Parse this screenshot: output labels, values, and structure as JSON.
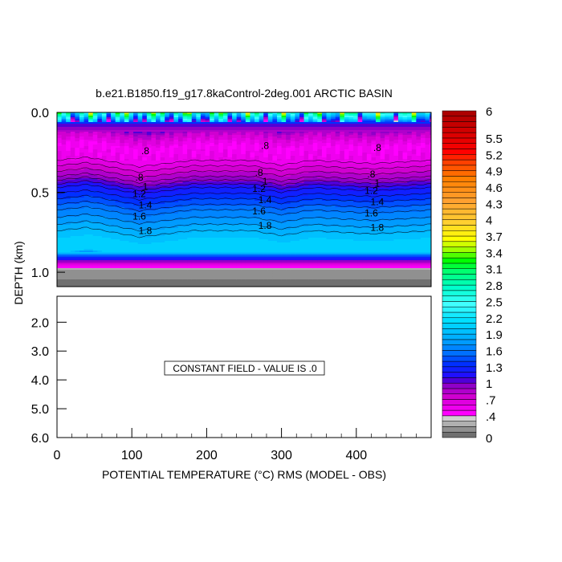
{
  "chart_data": {
    "type": "heatmap",
    "title": "b.e21.B1850.f19_g17.8kaControl-2deg.001 ARCTIC BASIN",
    "xlabel": "POTENTIAL TEMPERATURE (°C) RMS (MODEL - OBS)",
    "ylabel": "DEPTH (km)",
    "xlim": [
      0,
      500
    ],
    "x_ticks": [
      "0",
      "100",
      "200",
      "300",
      "400"
    ],
    "x_tick_values": [
      0,
      100,
      200,
      300,
      400
    ],
    "x_minor_step": 20,
    "upper_panel": {
      "ylim": [
        0,
        1.09
      ],
      "y_ticks": [
        "0.0",
        "0.5",
        "1.0"
      ],
      "y_tick_values": [
        0,
        0.5,
        1.0
      ],
      "contour_labels": [
        ".8",
        ".8",
        "1",
        "1.2",
        "1.4",
        "1.6",
        "1.8"
      ],
      "contour_label_values": [
        0.8,
        0.8,
        1.0,
        1.2,
        1.4,
        1.6,
        1.8
      ],
      "contour_label_x": [
        110,
        270,
        420
      ],
      "mean_profile": {
        "depth_km": [
          0.0,
          0.07,
          0.12,
          0.2,
          0.3,
          0.4,
          0.47,
          0.54,
          0.61,
          0.7,
          0.78,
          0.87,
          0.9,
          0.95,
          0.98,
          1.09
        ],
        "value": [
          2.6,
          1.1,
          0.8,
          0.5,
          0.6,
          0.9,
          1.2,
          1.4,
          1.6,
          1.8,
          2.0,
          2.0,
          1.3,
          0.6,
          0.2,
          0.0
        ]
      },
      "ridge_x": [
        0,
        40,
        110,
        180,
        260,
        300,
        340,
        420,
        500
      ],
      "ridge_shift_km": [
        0.0,
        -0.02,
        0.04,
        0.0,
        0.0,
        0.03,
        0.0,
        0.02,
        0.0
      ]
    },
    "lower_panel": {
      "ylim": [
        1.1,
        6.0
      ],
      "y_ticks": [
        "2.0",
        "3.0",
        "4.0",
        "5.0",
        "6.0"
      ],
      "y_tick_values": [
        2,
        3,
        4,
        5,
        6
      ],
      "annotation": "CONSTANT FIELD - VALUE IS .0"
    },
    "colorbar": {
      "min": 0,
      "max": 6,
      "step": 0.1,
      "labels": [
        "6",
        "5.5",
        "5.2",
        "4.9",
        "4.6",
        "4.3",
        "4",
        "3.7",
        "3.4",
        "3.1",
        "2.8",
        "2.5",
        "2.2",
        "1.9",
        "1.6",
        "1.3",
        "1",
        ".7",
        ".4",
        "0"
      ],
      "label_values": [
        6,
        5.5,
        5.2,
        4.9,
        4.6,
        4.3,
        4,
        3.7,
        3.4,
        3.1,
        2.8,
        2.5,
        2.2,
        1.9,
        1.6,
        1.3,
        1,
        0.7,
        0.4,
        0
      ],
      "color_stops": [
        [
          0.0,
          "#707070"
        ],
        [
          0.1,
          "#909090"
        ],
        [
          0.2,
          "#b0b0b0"
        ],
        [
          0.3,
          "#d0d0d0"
        ],
        [
          0.4,
          "#ff00ff"
        ],
        [
          0.7,
          "#d000d0"
        ],
        [
          0.9,
          "#9000c8"
        ],
        [
          1.0,
          "#5000d8"
        ],
        [
          1.1,
          "#2010ff"
        ],
        [
          1.3,
          "#0030ff"
        ],
        [
          1.5,
          "#0070ff"
        ],
        [
          1.8,
          "#00b0ff"
        ],
        [
          2.1,
          "#00e0ff"
        ],
        [
          2.4,
          "#40ffff"
        ],
        [
          2.7,
          "#00ffcc"
        ],
        [
          3.0,
          "#00ff70"
        ],
        [
          3.2,
          "#00ff00"
        ],
        [
          3.4,
          "#a0ff00"
        ],
        [
          3.6,
          "#ffff00"
        ],
        [
          3.9,
          "#ffd030"
        ],
        [
          4.3,
          "#ffa030"
        ],
        [
          4.7,
          "#ff8000"
        ],
        [
          5.0,
          "#ff4000"
        ],
        [
          5.2,
          "#ff0000"
        ],
        [
          5.6,
          "#d00000"
        ],
        [
          6.0,
          "#a00000"
        ]
      ]
    }
  }
}
